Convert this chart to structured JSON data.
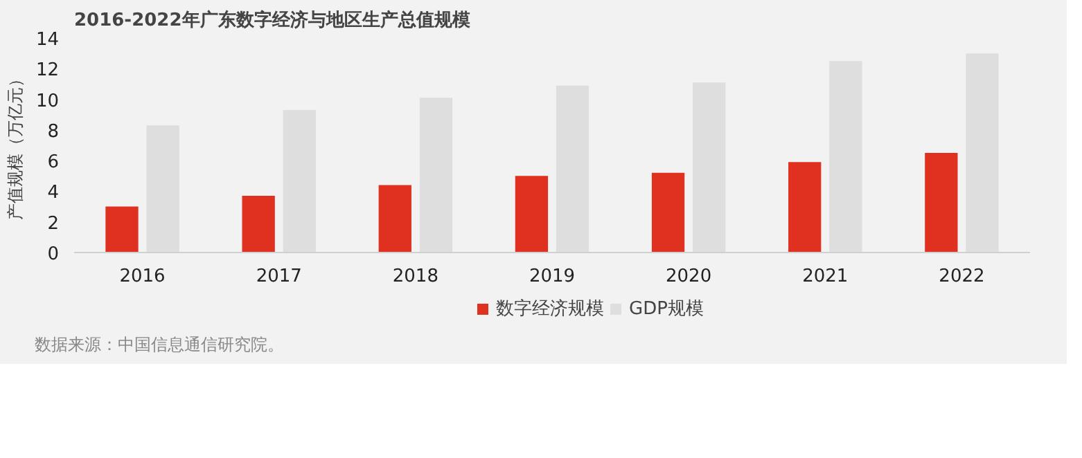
{
  "chart_data": {
    "type": "bar",
    "title": "2016-2022年广东数字经济与地区生产总值规模",
    "ylabel": "产值规模（万亿元）",
    "categories": [
      "2016",
      "2017",
      "2018",
      "2019",
      "2020",
      "2021",
      "2022"
    ],
    "series": [
      {
        "name": "数字经济规模",
        "color": "#e03020",
        "values": [
          3.0,
          3.7,
          4.4,
          5.0,
          5.2,
          5.9,
          6.5
        ]
      },
      {
        "name": "GDP规模",
        "color": "#dedede",
        "values": [
          8.3,
          9.3,
          10.1,
          10.9,
          11.1,
          12.5,
          13.0
        ]
      }
    ],
    "ylim": [
      0,
      14
    ],
    "yticks": [
      0,
      2,
      4,
      6,
      8,
      10,
      12,
      14
    ],
    "grid": false,
    "legend": "bottom",
    "annotations": [
      "数据来源：中国信息通信研究院。"
    ]
  }
}
